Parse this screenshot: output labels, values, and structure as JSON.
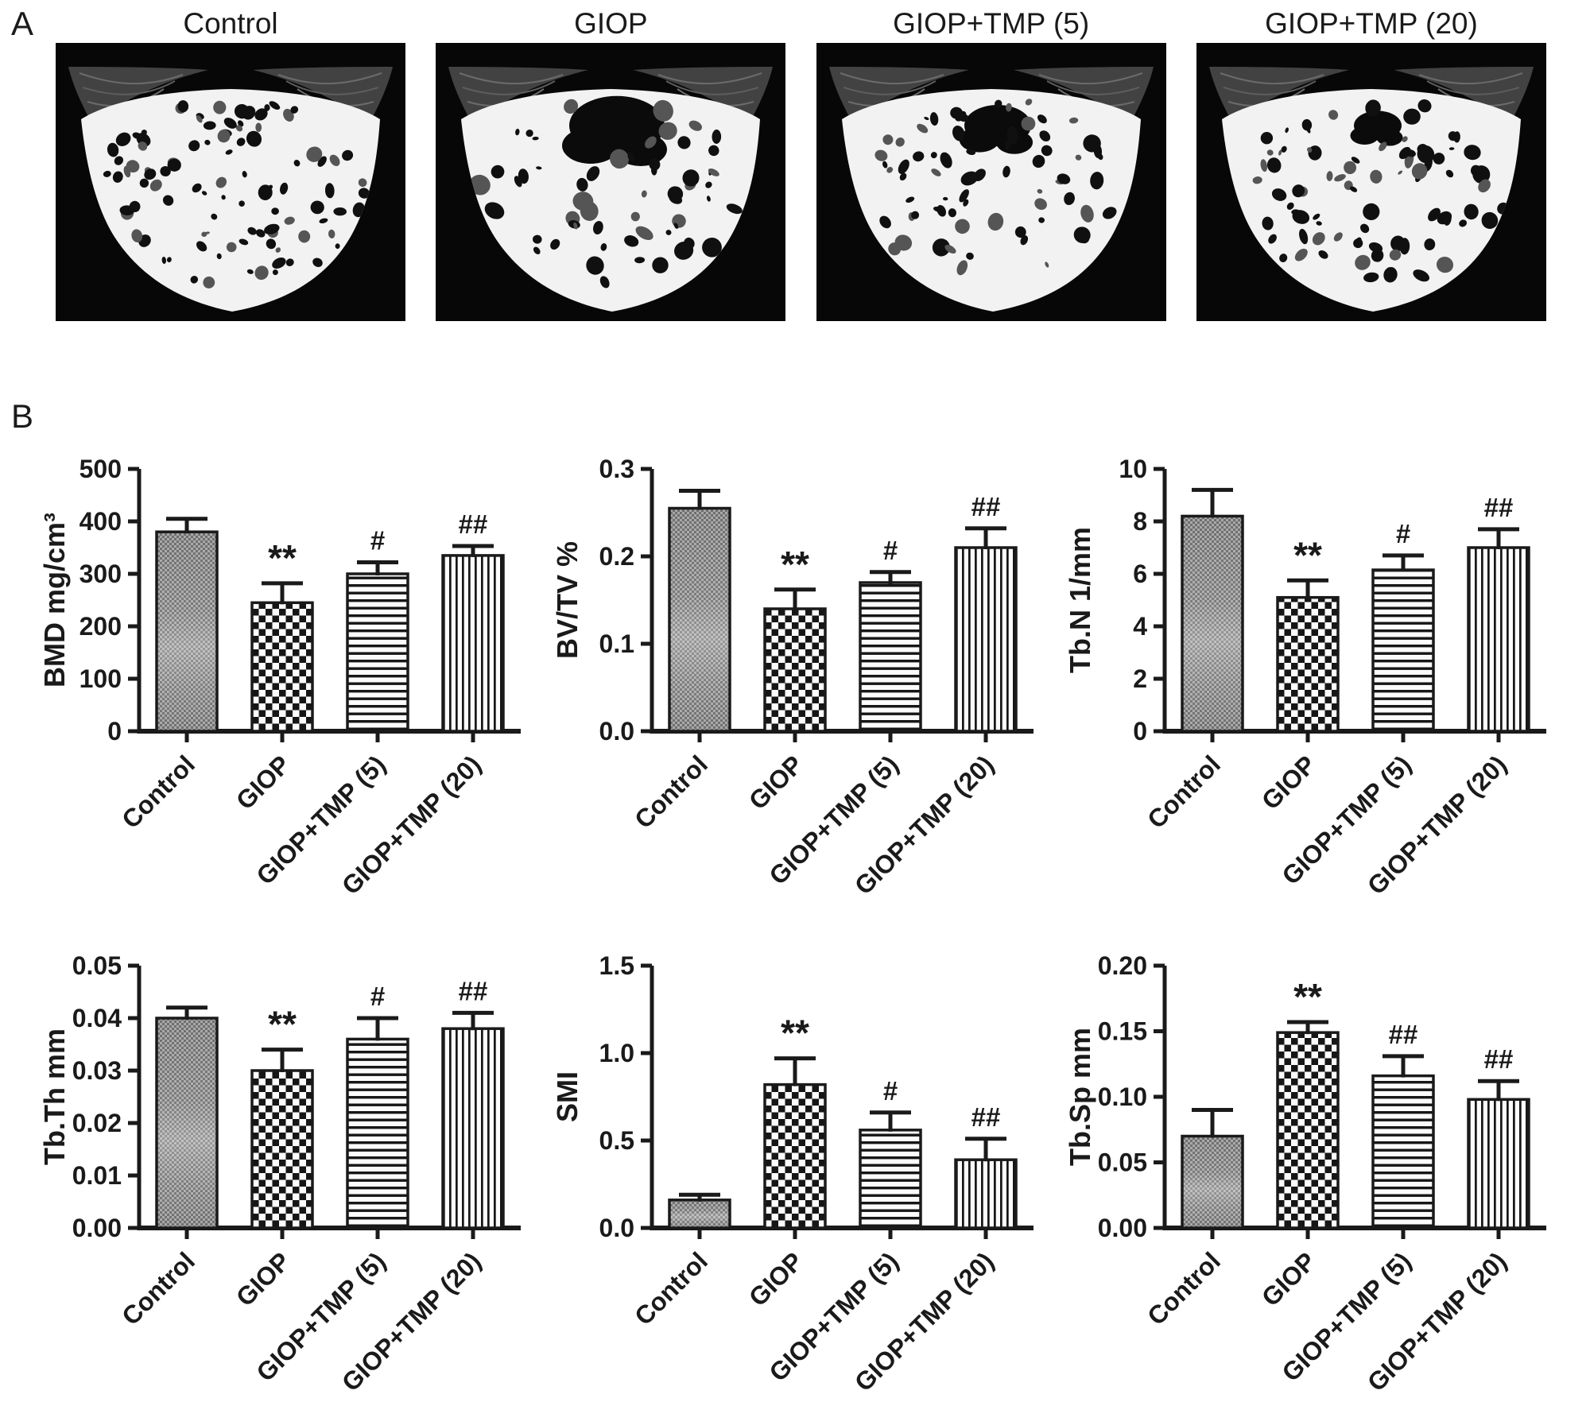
{
  "panel_a": {
    "label": "A",
    "panels": [
      {
        "title": "Control"
      },
      {
        "title": "GIOP"
      },
      {
        "title": "GIOP+TMP (5)"
      },
      {
        "title": "GIOP+TMP (20)"
      }
    ]
  },
  "panel_b": {
    "label": "B"
  },
  "colors": {
    "ink": "#1a1a1a",
    "background": "#ffffff"
  },
  "chart_data": [
    {
      "id": "bmd",
      "type": "bar",
      "ylabel": "BMD mg/cm³",
      "categories": [
        "Control",
        "GIOP",
        "GIOP+TMP (5)",
        "GIOP+TMP (20)"
      ],
      "values": [
        380,
        245,
        300,
        335
      ],
      "errors": [
        25,
        37,
        22,
        18
      ],
      "annotations": [
        "",
        "**",
        "#",
        "##"
      ],
      "ylim": [
        0,
        500
      ],
      "yticks": [
        0,
        100,
        200,
        300,
        400,
        500
      ],
      "ytick_labels": [
        "0",
        "100",
        "200",
        "300",
        "400",
        "500"
      ],
      "bar_patterns": [
        "fine-checker",
        "checkerboard",
        "horizontal-stripes",
        "vertical-stripes"
      ],
      "grid": false,
      "legend": null
    },
    {
      "id": "bvtv",
      "type": "bar",
      "ylabel": "BV/TV  %",
      "categories": [
        "Control",
        "GIOP",
        "GIOP+TMP (5)",
        "GIOP+TMP (20)"
      ],
      "values": [
        0.255,
        0.14,
        0.17,
        0.21
      ],
      "errors": [
        0.02,
        0.022,
        0.012,
        0.022
      ],
      "annotations": [
        "",
        "**",
        "#",
        "##"
      ],
      "ylim": [
        0,
        0.3
      ],
      "yticks": [
        0,
        0.1,
        0.2,
        0.3
      ],
      "ytick_labels": [
        "0.0",
        "0.1",
        "0.2",
        "0.3"
      ],
      "bar_patterns": [
        "fine-checker",
        "checkerboard",
        "horizontal-stripes",
        "vertical-stripes"
      ],
      "grid": false,
      "legend": null
    },
    {
      "id": "tbn",
      "type": "bar",
      "ylabel": "Tb.N  1/mm",
      "categories": [
        "Control",
        "GIOP",
        "GIOP+TMP (5)",
        "GIOP+TMP (20)"
      ],
      "values": [
        8.2,
        5.1,
        6.15,
        7.0
      ],
      "errors": [
        1.0,
        0.65,
        0.55,
        0.7
      ],
      "annotations": [
        "",
        "**",
        "#",
        "##"
      ],
      "ylim": [
        0,
        10
      ],
      "yticks": [
        0,
        2,
        4,
        6,
        8,
        10
      ],
      "ytick_labels": [
        "0",
        "2",
        "4",
        "6",
        "8",
        "10"
      ],
      "bar_patterns": [
        "fine-checker",
        "checkerboard",
        "horizontal-stripes",
        "vertical-stripes"
      ],
      "grid": false,
      "legend": null
    },
    {
      "id": "tbth",
      "type": "bar",
      "ylabel": "Tb.Th  mm",
      "categories": [
        "Control",
        "GIOP",
        "GIOP+TMP (5)",
        "GIOP+TMP (20)"
      ],
      "values": [
        0.04,
        0.03,
        0.036,
        0.038
      ],
      "errors": [
        0.002,
        0.004,
        0.004,
        0.003
      ],
      "annotations": [
        "",
        "**",
        "#",
        "##"
      ],
      "ylim": [
        0,
        0.05
      ],
      "yticks": [
        0,
        0.01,
        0.02,
        0.03,
        0.04,
        0.05
      ],
      "ytick_labels": [
        "0.00",
        "0.01",
        "0.02",
        "0.03",
        "0.04",
        "0.05"
      ],
      "bar_patterns": [
        "fine-checker",
        "checkerboard",
        "horizontal-stripes",
        "vertical-stripes"
      ],
      "grid": false,
      "legend": null
    },
    {
      "id": "smi",
      "type": "bar",
      "ylabel": "SMI",
      "categories": [
        "Control",
        "GIOP",
        "GIOP+TMP (5)",
        "GIOP+TMP (20)"
      ],
      "values": [
        0.16,
        0.82,
        0.56,
        0.39
      ],
      "errors": [
        0.03,
        0.15,
        0.1,
        0.12
      ],
      "annotations": [
        "",
        "**",
        "#",
        "##"
      ],
      "ylim": [
        0,
        1.5
      ],
      "yticks": [
        0,
        0.5,
        1.0,
        1.5
      ],
      "ytick_labels": [
        "0.0",
        "0.5",
        "1.0",
        "1.5"
      ],
      "bar_patterns": [
        "fine-checker",
        "checkerboard",
        "horizontal-stripes",
        "vertical-stripes"
      ],
      "grid": false,
      "legend": null
    },
    {
      "id": "tbsp",
      "type": "bar",
      "ylabel": "Tb.Sp  mm",
      "categories": [
        "Control",
        "GIOP",
        "GIOP+TMP (5)",
        "GIOP+TMP (20)"
      ],
      "values": [
        0.07,
        0.149,
        0.116,
        0.098
      ],
      "errors": [
        0.02,
        0.008,
        0.015,
        0.014
      ],
      "annotations": [
        "",
        "**",
        "##",
        "##"
      ],
      "ylim": [
        0,
        0.2
      ],
      "yticks": [
        0,
        0.05,
        0.1,
        0.15,
        0.2
      ],
      "ytick_labels": [
        "0.00",
        "0.05",
        "0.10",
        "0.15",
        "0.20"
      ],
      "bar_patterns": [
        "fine-checker",
        "checkerboard",
        "horizontal-stripes",
        "vertical-stripes"
      ],
      "grid": false,
      "legend": null
    }
  ]
}
